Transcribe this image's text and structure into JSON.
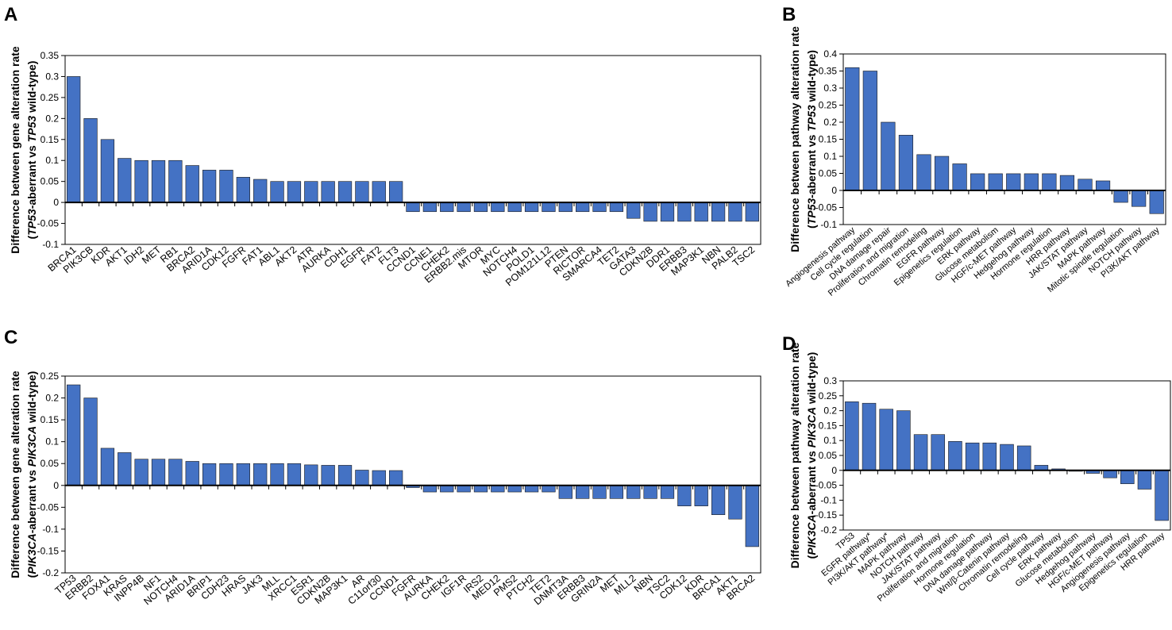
{
  "bar_color": "#4472C4",
  "bar_edge": "#1a1a1a",
  "chart_data": [
    {
      "type": "bar",
      "panel_letter": "A",
      "ylabel_line1": "Difference between gene alteration rate",
      "ylabel_line2_parts": [
        [
          "(",
          false
        ],
        [
          "TP53",
          true
        ],
        [
          "-aberrant vs ",
          false
        ],
        [
          "TP53",
          true
        ],
        [
          " wild-type)",
          false
        ]
      ],
      "ylim": [
        -0.1,
        0.35
      ],
      "yticks": [
        -0.1,
        -0.05,
        0,
        0.05,
        0.1,
        0.15,
        0.2,
        0.25,
        0.3,
        0.35
      ],
      "ytick_labels": [
        "-0.1",
        "-0.05",
        "0",
        "0.05",
        "0.1",
        "0.15",
        "0.2",
        "0.25",
        "0.3",
        "0.35"
      ],
      "categories": [
        "BRCA1",
        "PIK3CB",
        "KDR",
        "AKT1",
        "IDH2",
        "MET",
        "RB1",
        "BRCA2",
        "ARID1A",
        "CDK12",
        "FGFR",
        "FAT1",
        "ABL1",
        "AKT2",
        "ATR",
        "AURKA",
        "CDH1",
        "EGFR",
        "FAT2",
        "FLT3",
        "CCND1",
        "CCNE1",
        "CHEK2",
        "ERBB2.mis",
        "MTOR",
        "MYC",
        "NOTCH4",
        "POLD1",
        "POM121L12",
        "PTEN",
        "RICTOR",
        "SMARCA4",
        "TET2",
        "GATA3",
        "CDKN2B",
        "DDR1",
        "ERBB3",
        "MAP3K1",
        "NBN",
        "PALB2",
        "TSC2"
      ],
      "values": [
        0.3,
        0.2,
        0.15,
        0.105,
        0.1,
        0.1,
        0.1,
        0.088,
        0.077,
        0.077,
        0.06,
        0.055,
        0.05,
        0.05,
        0.05,
        0.05,
        0.05,
        0.05,
        0.05,
        0.05,
        -0.022,
        -0.022,
        -0.022,
        -0.022,
        -0.022,
        -0.022,
        -0.022,
        -0.022,
        -0.022,
        -0.022,
        -0.022,
        -0.022,
        -0.022,
        -0.038,
        -0.045,
        -0.045,
        -0.045,
        -0.045,
        -0.045,
        -0.045,
        -0.045
      ]
    },
    {
      "type": "bar",
      "panel_letter": "B",
      "ylabel_line1": "Difference between pathway alteration rate",
      "ylabel_line2_parts": [
        [
          "(",
          false
        ],
        [
          "TP53",
          true
        ],
        [
          "-aberrant vs ",
          false
        ],
        [
          "TP53",
          true
        ],
        [
          " wild-type)",
          false
        ]
      ],
      "ylim": [
        -0.1,
        0.4
      ],
      "yticks": [
        -0.1,
        -0.05,
        0,
        0.05,
        0.1,
        0.15,
        0.2,
        0.25,
        0.3,
        0.35,
        0.4
      ],
      "ytick_labels": [
        "-0.1",
        "-0.05",
        "0",
        "0.05",
        "0.1",
        "0.15",
        "0.2",
        "0.25",
        "0.3",
        "0.35",
        "0.4"
      ],
      "categories": [
        "Angiogenesis pathway",
        "Cell cycle regulation",
        "DNA damage repair",
        "Proliferation and migration",
        "Chromatin remodeling",
        "EGFR pathway",
        "Epigenetics regulation",
        "ERK pathway",
        "Glucose metabolism",
        "HGF/c-MET pathway",
        "Hedgehog pathway",
        "Hormone regulation",
        "HRR pathway",
        "JAK/STAT pathway",
        "MAPK pathway",
        "Mitotic spindle regulation",
        "NOTCH pathway",
        "PI3K/AKT pathway"
      ],
      "values": [
        0.36,
        0.35,
        0.2,
        0.162,
        0.105,
        0.1,
        0.078,
        0.049,
        0.049,
        0.049,
        0.049,
        0.049,
        0.044,
        0.033,
        0.028,
        -0.035,
        -0.047,
        -0.068
      ]
    },
    {
      "type": "bar",
      "panel_letter": "C",
      "ylabel_line1": "Difference between gene alteration rate",
      "ylabel_line2_parts": [
        [
          "(",
          false
        ],
        [
          "PIK3CA",
          true
        ],
        [
          "-aberrant vs ",
          false
        ],
        [
          "PIK3CA",
          true
        ],
        [
          " wild-type)",
          false
        ]
      ],
      "ylim": [
        -0.2,
        0.25
      ],
      "yticks": [
        -0.2,
        -0.15,
        -0.1,
        -0.05,
        0,
        0.05,
        0.1,
        0.15,
        0.2,
        0.25
      ],
      "ytick_labels": [
        "-0.2",
        "-0.15",
        "-0.1",
        "-0.05",
        "0",
        "0.05",
        "0.1",
        "0.15",
        "0.2",
        "0.25"
      ],
      "categories": [
        "TP53",
        "ERBB2",
        "FOXA1",
        "KRAS",
        "INPP4B",
        "NF1",
        "NOTCH4",
        "ARID1A",
        "BRIP1",
        "CDH23",
        "HRAS",
        "JAK3",
        "MLL",
        "XRCC1",
        "ESR1",
        "CDKN2B",
        "MAP3K1",
        "AR",
        "C11orf30",
        "CCND1",
        "FGFR",
        "AURKA",
        "CHEK2",
        "IGF1R",
        "IRS2",
        "MED12",
        "PMS2",
        "PTCH2",
        "TET2",
        "DNMT3A",
        "ERBB3",
        "GRIN2A",
        "MET",
        "MLL2",
        "NBN",
        "TSC2",
        "CDK12",
        "KDR",
        "BRCA1",
        "AKT1",
        "BRCA2"
      ],
      "values": [
        0.23,
        0.2,
        0.085,
        0.075,
        0.06,
        0.06,
        0.06,
        0.055,
        0.05,
        0.05,
        0.05,
        0.05,
        0.05,
        0.05,
        0.047,
        0.046,
        0.046,
        0.035,
        0.034,
        0.034,
        -0.005,
        -0.015,
        -0.015,
        -0.015,
        -0.015,
        -0.015,
        -0.015,
        -0.015,
        -0.015,
        -0.03,
        -0.03,
        -0.03,
        -0.03,
        -0.03,
        -0.03,
        -0.03,
        -0.047,
        -0.047,
        -0.067,
        -0.077,
        -0.14
      ]
    },
    {
      "type": "bar",
      "panel_letter": "D",
      "ylabel_line1": "Difference between pathway alteration rate",
      "ylabel_line2_parts": [
        [
          "(",
          false
        ],
        [
          "PIK3CA",
          true
        ],
        [
          "-aberrant vs ",
          false
        ],
        [
          "PIK3CA",
          true
        ],
        [
          " wild-type)",
          false
        ]
      ],
      "ylim": [
        -0.2,
        0.3
      ],
      "yticks": [
        -0.2,
        -0.15,
        -0.1,
        -0.05,
        0,
        0.05,
        0.1,
        0.15,
        0.2,
        0.25,
        0.3
      ],
      "ytick_labels": [
        "-0.2",
        "-0.15",
        "-0.1",
        "-0.05",
        "0",
        "0.05",
        "0.1",
        "0.15",
        "0.2",
        "0.25",
        "0.3"
      ],
      "categories": [
        "TP53",
        "EGFR pathway*",
        "PI3K/AKT pathway*",
        "MAPK pathway",
        "NOTCH pathway",
        "JAK/STAT pathway",
        "Proliferation and migration",
        "Hormone regulation",
        "DNA damage pathway",
        "Wnt/β-Catenin pathway",
        "Chromatin remodeling",
        "Cell cycle pathway",
        "ERK pathway",
        "Glucose metabolism",
        "Hedgehog pathway",
        "HGF/c-MET pathway",
        "Angiogenesis pathway",
        "Epigenetics regulation",
        "HRR pathway"
      ],
      "values": [
        0.23,
        0.225,
        0.205,
        0.2,
        0.12,
        0.12,
        0.097,
        0.092,
        0.092,
        0.087,
        0.082,
        0.017,
        0.005,
        -0.003,
        -0.01,
        -0.025,
        -0.045,
        -0.063,
        -0.168
      ]
    }
  ]
}
